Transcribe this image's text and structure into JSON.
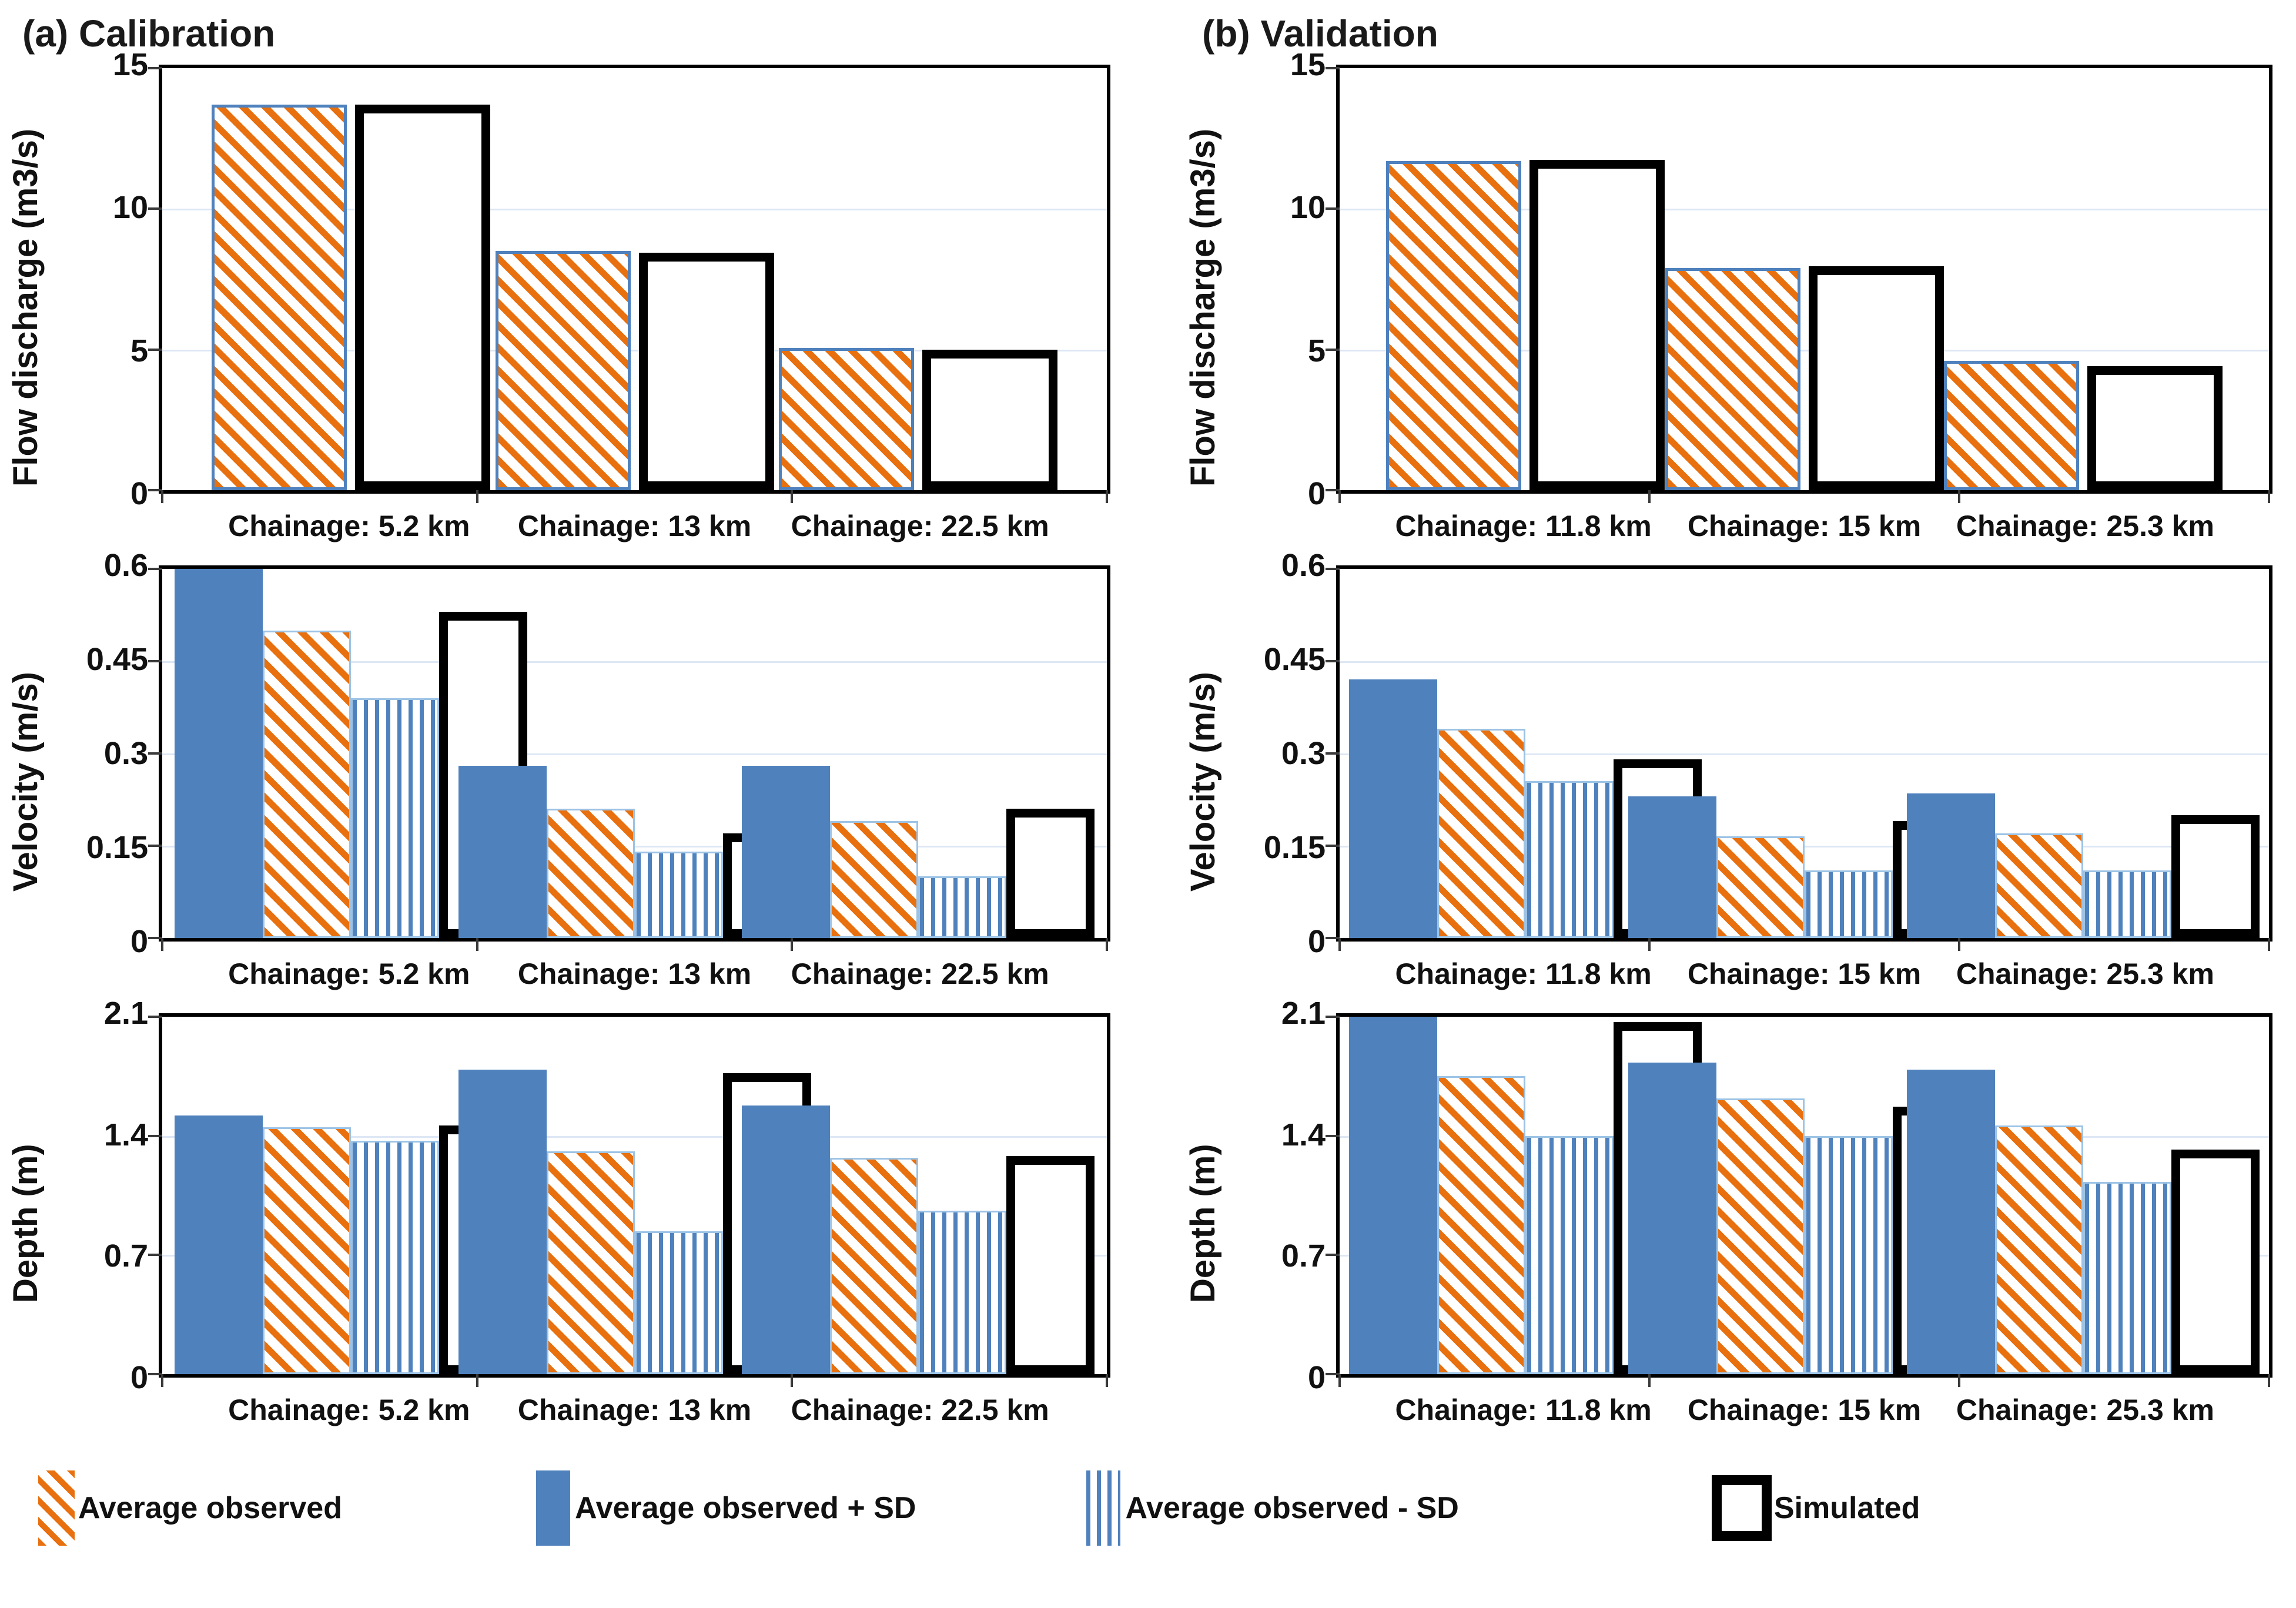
{
  "titles": {
    "calibration": "(a) Calibration",
    "validation": "(b) Validation"
  },
  "legend": [
    {
      "key": "avg",
      "label": "Average observed"
    },
    {
      "key": "plus",
      "label": "Average observed + SD"
    },
    {
      "key": "minus",
      "label": "Average observed - SD"
    },
    {
      "key": "sim",
      "label": "Simulated"
    }
  ],
  "colors": {
    "blue": "#4f81bd",
    "orange": "#e8700e",
    "stripe_border": "#9cc3e5",
    "gridline": "#dde7f4",
    "simulated_border": "#000000",
    "background": "#ffffff"
  },
  "chart_data": [
    {
      "id": "calibration-flow-discharge",
      "type": "bar",
      "title": "(a) Calibration — Flow discharge",
      "ylabel": "Flow discharge (m3/s)",
      "ylim": [
        0,
        15
      ],
      "yticks": [
        15,
        10,
        5,
        0
      ],
      "grid": "on",
      "categories": [
        "Chainage: 5.2 km",
        "Chainage: 13 km",
        "Chainage: 22.5 km"
      ],
      "series": [
        {
          "key": "avg",
          "name": "Average observed",
          "values": [
            13.7,
            8.5,
            5.05
          ]
        },
        {
          "key": "sim",
          "name": "Simulated",
          "values": [
            13.7,
            8.45,
            5.0
          ]
        }
      ]
    },
    {
      "id": "calibration-velocity",
      "type": "bar",
      "title": "(a) Calibration — Velocity",
      "ylabel": "Velocity (m/s)",
      "ylim": [
        0,
        0.6
      ],
      "yticks": [
        0.6,
        0.45,
        0.3,
        0.15,
        0
      ],
      "grid": "on",
      "categories": [
        "Chainage: 5.2 km",
        "Chainage: 13 km",
        "Chainage: 22.5 km"
      ],
      "series": [
        {
          "key": "plus",
          "name": "Average observed + SD",
          "values": [
            0.6,
            0.28,
            0.28
          ]
        },
        {
          "key": "avg",
          "name": "Average observed",
          "values": [
            0.5,
            0.21,
            0.19
          ]
        },
        {
          "key": "minus",
          "name": "Average observed - SD",
          "values": [
            0.39,
            0.14,
            0.1
          ]
        },
        {
          "key": "sim",
          "name": "Simulated",
          "values": [
            0.53,
            0.17,
            0.21
          ]
        }
      ]
    },
    {
      "id": "calibration-depth",
      "type": "bar",
      "title": "(a) Calibration — Depth",
      "ylabel": "Depth (m)",
      "ylim": [
        0,
        2.1
      ],
      "yticks": [
        2.1,
        1.4,
        0.7,
        0
      ],
      "grid": "on",
      "categories": [
        "Chainage: 5.2 km",
        "Chainage: 13 km",
        "Chainage: 22.5 km"
      ],
      "series": [
        {
          "key": "plus",
          "name": "Average observed + SD",
          "values": [
            1.52,
            1.79,
            1.58
          ]
        },
        {
          "key": "avg",
          "name": "Average observed",
          "values": [
            1.45,
            1.31,
            1.27
          ]
        },
        {
          "key": "minus",
          "name": "Average observed - SD",
          "values": [
            1.37,
            0.84,
            0.96
          ]
        },
        {
          "key": "sim",
          "name": "Simulated",
          "values": [
            1.46,
            1.77,
            1.28
          ]
        }
      ]
    },
    {
      "id": "validation-flow-discharge",
      "type": "bar",
      "title": "(b) Validation — Flow discharge",
      "ylabel": "Flow discharge (m3/s)",
      "ylim": [
        0,
        15
      ],
      "yticks": [
        15,
        10,
        5,
        0
      ],
      "grid": "on",
      "categories": [
        "Chainage: 11.8 km",
        "Chainage: 15 km",
        "Chainage: 25.3 km"
      ],
      "series": [
        {
          "key": "avg",
          "name": "Average observed",
          "values": [
            11.7,
            7.9,
            4.6
          ]
        },
        {
          "key": "sim",
          "name": "Simulated",
          "values": [
            11.75,
            7.95,
            4.4
          ]
        }
      ]
    },
    {
      "id": "validation-velocity",
      "type": "bar",
      "title": "(b) Validation — Velocity",
      "ylabel": "Velocity (m/s)",
      "ylim": [
        0,
        0.6
      ],
      "yticks": [
        0.6,
        0.45,
        0.3,
        0.15,
        0
      ],
      "grid": "on",
      "categories": [
        "Chainage: 11.8 km",
        "Chainage: 15 km",
        "Chainage: 25.3 km"
      ],
      "series": [
        {
          "key": "plus",
          "name": "Average observed + SD",
          "values": [
            0.42,
            0.23,
            0.235
          ]
        },
        {
          "key": "avg",
          "name": "Average observed",
          "values": [
            0.34,
            0.165,
            0.17
          ]
        },
        {
          "key": "minus",
          "name": "Average observed - SD",
          "values": [
            0.255,
            0.11,
            0.11
          ]
        },
        {
          "key": "sim",
          "name": "Simulated",
          "values": [
            0.29,
            0.19,
            0.2
          ]
        }
      ]
    },
    {
      "id": "validation-depth",
      "type": "bar",
      "title": "(b) Validation — Depth",
      "ylabel": "Depth (m)",
      "ylim": [
        0,
        2.1
      ],
      "yticks": [
        2.1,
        1.4,
        0.7,
        0
      ],
      "grid": "on",
      "categories": [
        "Chainage: 11.8 km",
        "Chainage: 15 km",
        "Chainage: 25.3 km"
      ],
      "series": [
        {
          "key": "plus",
          "name": "Average observed + SD",
          "values": [
            2.1,
            1.83,
            1.79
          ]
        },
        {
          "key": "avg",
          "name": "Average observed",
          "values": [
            1.75,
            1.62,
            1.46
          ]
        },
        {
          "key": "minus",
          "name": "Average observed - SD",
          "values": [
            1.4,
            1.4,
            1.13
          ]
        },
        {
          "key": "sim",
          "name": "Simulated",
          "values": [
            2.07,
            1.57,
            1.32
          ]
        }
      ]
    }
  ]
}
